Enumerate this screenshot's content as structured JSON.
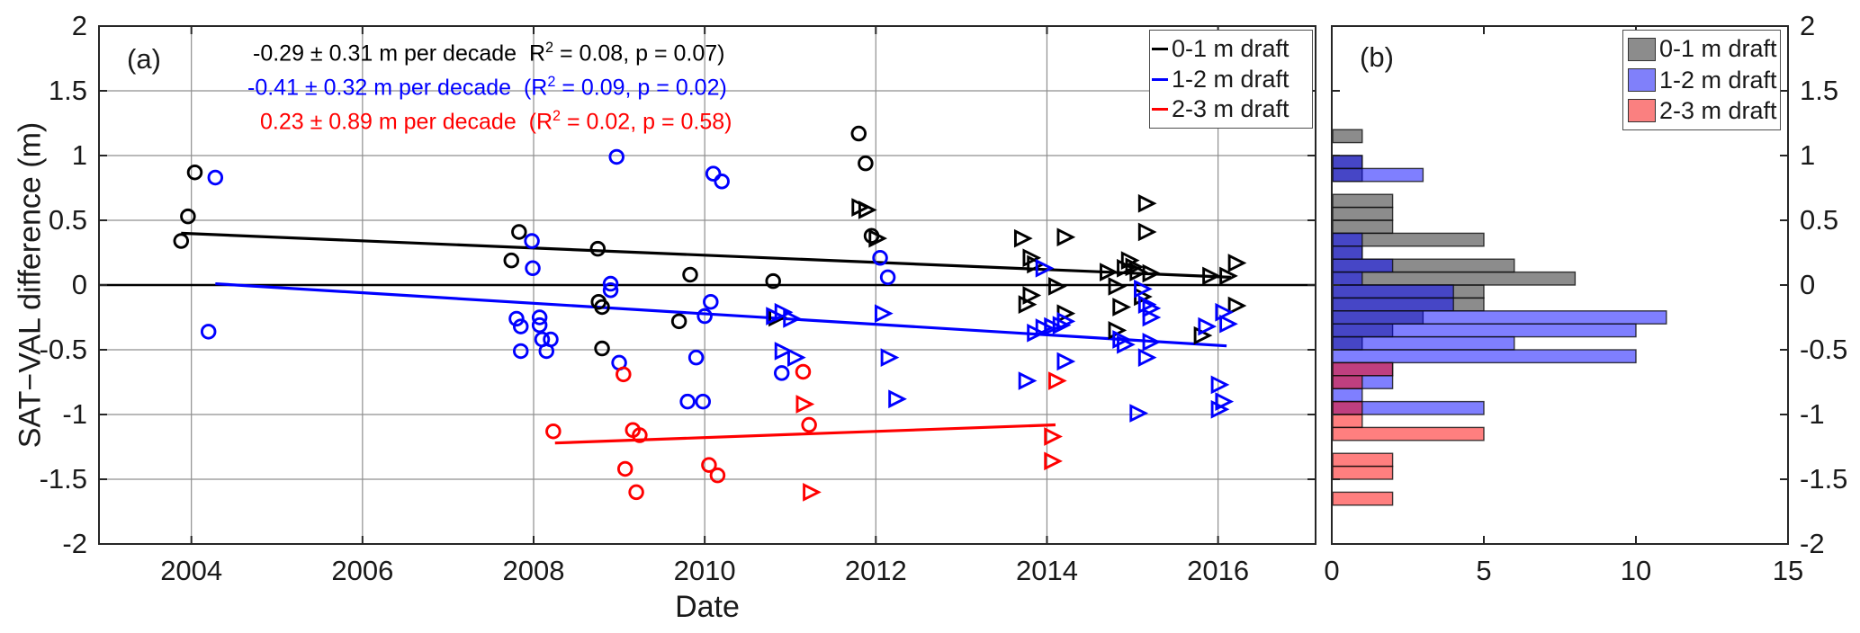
{
  "figure": {
    "background": "#ffffff",
    "colors": {
      "black": "#000000",
      "blue": "#0000ff",
      "red": "#ff0000",
      "grid": "#8f8f8f",
      "axis": "#262626"
    },
    "panel_a": {
      "label": "(a)",
      "xlabel": "Date",
      "ylabel": "SAT−VAL difference (m)",
      "x_ticks": [
        {
          "label": "2004",
          "value": 2004
        },
        {
          "label": "2006",
          "value": 2006
        },
        {
          "label": "2008",
          "value": 2008
        },
        {
          "label": "2010",
          "value": 2010
        },
        {
          "label": "2012",
          "value": 2012
        },
        {
          "label": "2014",
          "value": 2014
        },
        {
          "label": "2016",
          "value": 2016
        }
      ],
      "y_ticks": [
        {
          "label": "2",
          "value": 2
        },
        {
          "label": "1.5",
          "value": 1.5
        },
        {
          "label": "1",
          "value": 1
        },
        {
          "label": "0.5",
          "value": 0.5
        },
        {
          "label": "0",
          "value": 0
        },
        {
          "label": "-0.5",
          "value": -0.5
        },
        {
          "label": "-1",
          "value": -1
        },
        {
          "label": "-1.5",
          "value": -1.5
        },
        {
          "label": "-2",
          "value": -2
        }
      ],
      "annotations": [
        {
          "color": "#000000",
          "pre": "-0.29 ± 0.31 m per decade  R",
          "sup": "2",
          "post": " = 0.08, p = 0.07)"
        },
        {
          "color": "#0000ff",
          "pre": "-0.41 ± 0.32 m per decade  (R",
          "sup": "2",
          "post": " = 0.09, p = 0.02)"
        },
        {
          "color": "#ff0000",
          "pre": "0.23 ± 0.89 m per decade  (R",
          "sup": "2",
          "post": " = 0.02, p = 0.58)"
        }
      ],
      "legend": {
        "items": [
          {
            "label": "0-1 m draft",
            "color": "#000000"
          },
          {
            "label": "1-2 m draft",
            "color": "#0000ff"
          },
          {
            "label": "2-3 m draft",
            "color": "#ff0000"
          }
        ]
      }
    },
    "panel_b": {
      "label": "(b)",
      "x_ticks": [
        {
          "label": "0",
          "value": 0
        },
        {
          "label": "5",
          "value": 5
        },
        {
          "label": "10",
          "value": 10
        },
        {
          "label": "15",
          "value": 15
        }
      ],
      "y_ticks": [
        {
          "label": "2",
          "value": 2
        },
        {
          "label": "1.5",
          "value": 1.5
        },
        {
          "label": "1",
          "value": 1
        },
        {
          "label": "0.5",
          "value": 0.5
        },
        {
          "label": "0",
          "value": 0
        },
        {
          "label": "-0.5",
          "value": -0.5
        },
        {
          "label": "-1",
          "value": -1
        },
        {
          "label": "-1.5",
          "value": -1.5
        },
        {
          "label": "-2",
          "value": -2
        }
      ],
      "legend": {
        "items": [
          {
            "label": "0-1 m draft",
            "swatch": "#8c8c8c"
          },
          {
            "label": "1-2 m draft",
            "swatch": "#8080fa"
          },
          {
            "label": "2-3 m draft",
            "swatch": "#fa8080"
          }
        ]
      }
    }
  },
  "chart_data": [
    {
      "type": "scatter",
      "panel": "(a)",
      "title": "",
      "xlabel": "Date",
      "ylabel": "SAT−VAL difference (m)",
      "xlim": [
        2002.92,
        2017.14
      ],
      "ylim": [
        -2,
        2
      ],
      "grid": true,
      "legend_position": "top-right",
      "zero_line": true,
      "series": [
        {
          "name": "0-1 m draft circles",
          "marker": "circle",
          "color": "#000000",
          "points": [
            [
              2003.88,
              0.34
            ],
            [
              2003.96,
              0.53
            ],
            [
              2004.04,
              0.87
            ],
            [
              2007.74,
              0.19
            ],
            [
              2007.83,
              0.41
            ],
            [
              2008.75,
              0.28
            ],
            [
              2008.76,
              -0.13
            ],
            [
              2008.8,
              -0.17
            ],
            [
              2008.8,
              -0.49
            ],
            [
              2009.7,
              -0.28
            ],
            [
              2009.83,
              0.08
            ],
            [
              2010.8,
              0.03
            ],
            [
              2011.8,
              1.17
            ],
            [
              2011.88,
              0.94
            ],
            [
              2011.95,
              0.38
            ]
          ]
        },
        {
          "name": "0-1 m draft triangles",
          "marker": "triangle-right",
          "color": "#000000",
          "points": [
            [
              2010.83,
              -0.25
            ],
            [
              2011.8,
              0.6
            ],
            [
              2011.88,
              0.58
            ],
            [
              2012.0,
              0.36
            ],
            [
              2013.7,
              0.36
            ],
            [
              2013.8,
              0.21
            ],
            [
              2013.85,
              0.16
            ],
            [
              2013.8,
              -0.08
            ],
            [
              2013.75,
              -0.15
            ],
            [
              2014.1,
              -0.01
            ],
            [
              2014.2,
              0.37
            ],
            [
              2014.2,
              -0.22
            ],
            [
              2014.7,
              0.1
            ],
            [
              2014.8,
              -0.01
            ],
            [
              2014.8,
              -0.35
            ],
            [
              2014.85,
              -0.17
            ],
            [
              2014.9,
              0.13
            ],
            [
              2014.95,
              0.19
            ],
            [
              2015.0,
              0.14
            ],
            [
              2015.05,
              0.1
            ],
            [
              2015.1,
              -0.09
            ],
            [
              2015.15,
              0.63
            ],
            [
              2015.15,
              0.41
            ],
            [
              2015.2,
              0.09
            ],
            [
              2015.8,
              -0.39
            ],
            [
              2015.9,
              0.07
            ],
            [
              2016.1,
              0.07
            ],
            [
              2016.2,
              0.17
            ],
            [
              2016.2,
              -0.16
            ]
          ]
        },
        {
          "name": "1-2 m draft circles",
          "marker": "circle",
          "color": "#0000ff",
          "points": [
            [
              2004.2,
              -0.36
            ],
            [
              2004.28,
              0.83
            ],
            [
              2007.8,
              -0.26
            ],
            [
              2007.85,
              -0.32
            ],
            [
              2007.85,
              -0.51
            ],
            [
              2007.98,
              0.34
            ],
            [
              2007.99,
              0.13
            ],
            [
              2008.07,
              -0.25
            ],
            [
              2008.07,
              -0.31
            ],
            [
              2008.1,
              -0.42
            ],
            [
              2008.15,
              -0.51
            ],
            [
              2008.2,
              -0.42
            ],
            [
              2008.9,
              0.01
            ],
            [
              2008.9,
              -0.04
            ],
            [
              2008.97,
              0.99
            ],
            [
              2009.0,
              -0.6
            ],
            [
              2009.8,
              -0.9
            ],
            [
              2009.9,
              -0.56
            ],
            [
              2009.98,
              -0.9
            ],
            [
              2010.0,
              -0.24
            ],
            [
              2010.07,
              -0.13
            ],
            [
              2010.1,
              0.86
            ],
            [
              2010.2,
              0.8
            ],
            [
              2010.9,
              -0.68
            ],
            [
              2012.05,
              0.21
            ],
            [
              2012.14,
              0.06
            ]
          ]
        },
        {
          "name": "1-2 m draft triangles",
          "marker": "triangle-right",
          "color": "#0000ff",
          "points": [
            [
              2010.8,
              -0.24
            ],
            [
              2010.9,
              -0.21
            ],
            [
              2010.9,
              -0.51
            ],
            [
              2011.0,
              -0.26
            ],
            [
              2011.05,
              -0.56
            ],
            [
              2012.07,
              -0.22
            ],
            [
              2012.14,
              -0.56
            ],
            [
              2012.23,
              -0.88
            ],
            [
              2013.75,
              -0.74
            ],
            [
              2013.85,
              -0.37
            ],
            [
              2013.95,
              0.13
            ],
            [
              2013.95,
              -0.33
            ],
            [
              2014.05,
              -0.32
            ],
            [
              2014.15,
              -0.31
            ],
            [
              2014.2,
              -0.28
            ],
            [
              2014.2,
              -0.59
            ],
            [
              2014.85,
              -0.42
            ],
            [
              2014.9,
              -0.46
            ],
            [
              2015.05,
              -0.99
            ],
            [
              2015.1,
              -0.03
            ],
            [
              2015.15,
              -0.15
            ],
            [
              2015.15,
              -0.56
            ],
            [
              2015.2,
              -0.18
            ],
            [
              2015.2,
              -0.25
            ],
            [
              2015.2,
              -0.44
            ],
            [
              2015.85,
              -0.32
            ],
            [
              2016.0,
              -0.77
            ],
            [
              2016.0,
              -0.96
            ],
            [
              2016.05,
              -0.21
            ],
            [
              2016.05,
              -0.9
            ],
            [
              2016.1,
              -0.3
            ]
          ]
        },
        {
          "name": "2-3 m draft circles",
          "marker": "circle",
          "color": "#ff0000",
          "points": [
            [
              2008.23,
              -1.13
            ],
            [
              2009.05,
              -0.69
            ],
            [
              2009.07,
              -1.42
            ],
            [
              2009.16,
              -1.12
            ],
            [
              2009.2,
              -1.6
            ],
            [
              2009.24,
              -1.16
            ],
            [
              2010.05,
              -1.39
            ],
            [
              2010.15,
              -1.47
            ],
            [
              2011.15,
              -0.67
            ],
            [
              2011.22,
              -1.08
            ]
          ]
        },
        {
          "name": "2-3 m draft triangles",
          "marker": "triangle-right",
          "color": "#ff0000",
          "points": [
            [
              2011.15,
              -0.92
            ],
            [
              2011.23,
              -1.6
            ],
            [
              2014.05,
              -1.17
            ],
            [
              2014.05,
              -1.36
            ],
            [
              2014.1,
              -0.74
            ]
          ]
        }
      ],
      "trend_lines": [
        {
          "name": "0-1 m draft fit",
          "color": "#000000",
          "x1": 2003.88,
          "y1": 0.4,
          "x2": 2016.15,
          "y2": 0.06
        },
        {
          "name": "1-2 m draft fit",
          "color": "#0000ff",
          "x1": 2004.28,
          "y1": 0.01,
          "x2": 2016.1,
          "y2": -0.47
        },
        {
          "name": "2-3 m draft fit",
          "color": "#ff0000",
          "x1": 2008.25,
          "y1": -1.22,
          "x2": 2014.1,
          "y2": -1.08
        }
      ]
    },
    {
      "type": "bar",
      "panel": "(b)",
      "orientation": "horizontal",
      "xlim": [
        0,
        15
      ],
      "ylim": [
        -2,
        2
      ],
      "grid": false,
      "bin_width_m": 0.1,
      "legend_position": "top-right",
      "series": [
        {
          "name": "0-1 m draft",
          "fill": "rgba(0,0,0,0.45)",
          "bins": [
            [
              1.1,
              1
            ],
            [
              0.9,
              1
            ],
            [
              0.8,
              1
            ],
            [
              0.6,
              2
            ],
            [
              0.5,
              2
            ],
            [
              0.4,
              2
            ],
            [
              0.3,
              5
            ],
            [
              0.2,
              1
            ],
            [
              0.1,
              6
            ],
            [
              0.0,
              8
            ],
            [
              -0.1,
              5
            ],
            [
              -0.2,
              5
            ],
            [
              -0.3,
              3
            ],
            [
              -0.4,
              2
            ],
            [
              -0.5,
              1
            ]
          ]
        },
        {
          "name": "1-2 m draft",
          "fill": "rgba(0,0,255,0.5)",
          "bins": [
            [
              0.9,
              1
            ],
            [
              0.8,
              3
            ],
            [
              0.3,
              1
            ],
            [
              0.2,
              1
            ],
            [
              0.1,
              2
            ],
            [
              0.0,
              1
            ],
            [
              -0.1,
              4
            ],
            [
              -0.2,
              4
            ],
            [
              -0.3,
              11
            ],
            [
              -0.4,
              10
            ],
            [
              -0.5,
              6
            ],
            [
              -0.6,
              10
            ],
            [
              -0.7,
              2
            ],
            [
              -0.8,
              2
            ],
            [
              -0.9,
              1
            ],
            [
              -1.0,
              5
            ]
          ]
        },
        {
          "name": "2-3 m draft",
          "fill": "rgba(255,0,0,0.5)",
          "bins": [
            [
              -0.7,
              2
            ],
            [
              -0.8,
              1
            ],
            [
              -1.0,
              1
            ],
            [
              -1.1,
              1
            ],
            [
              -1.2,
              5
            ],
            [
              -1.4,
              2
            ],
            [
              -1.5,
              2
            ],
            [
              -1.7,
              2
            ]
          ]
        }
      ]
    }
  ]
}
